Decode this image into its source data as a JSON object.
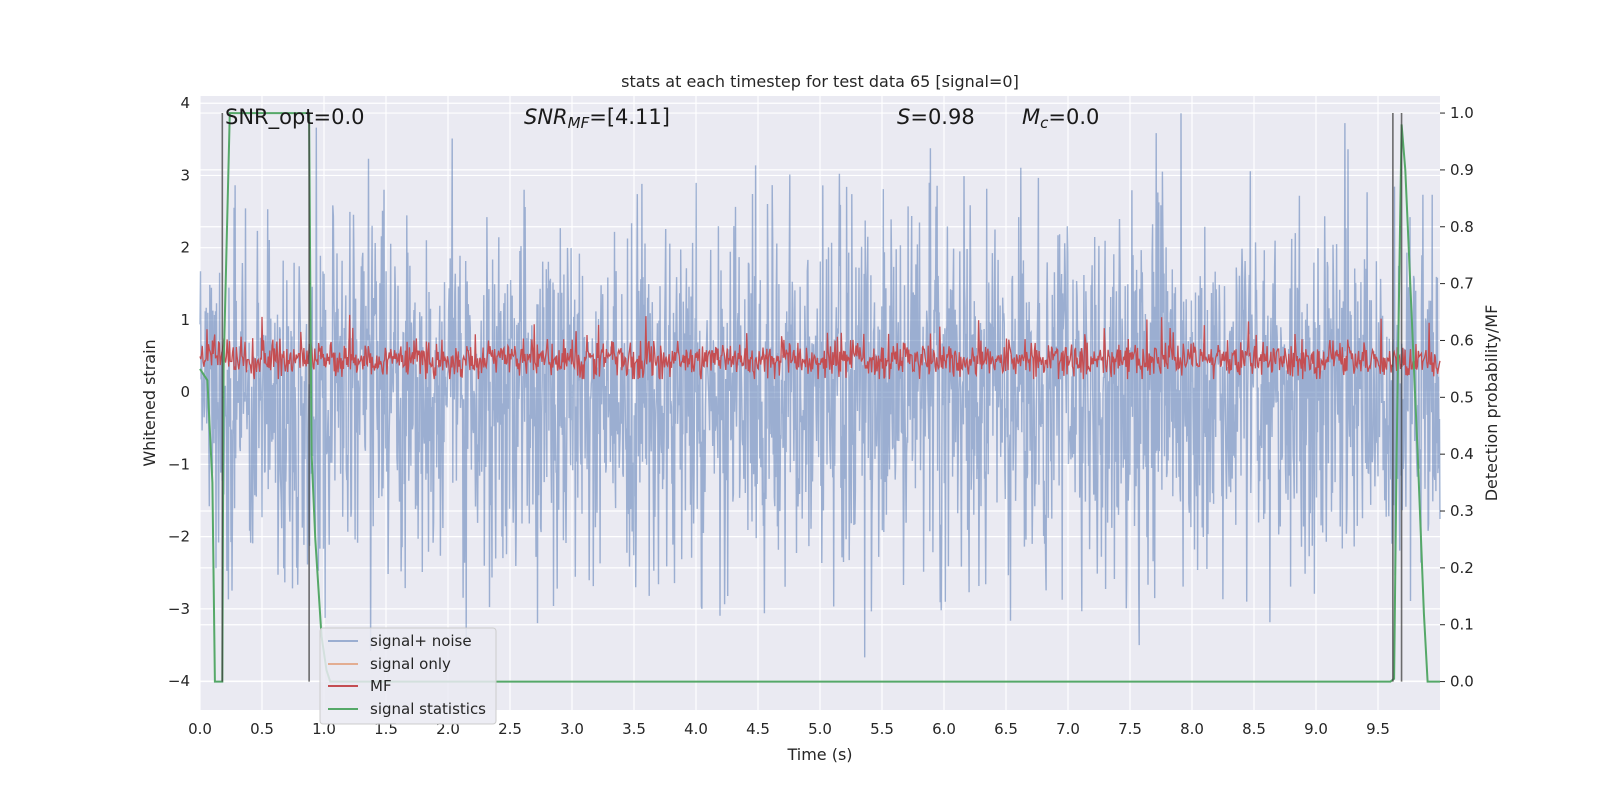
{
  "chart_data": {
    "type": "line",
    "title": "stats at each timestep for test data 65 [signal=0]",
    "xlabel": "Time (s)",
    "ylabel": "Whitened strain",
    "ylabel_right": "Detection probability/MF",
    "xlim": [
      0.0,
      10.0
    ],
    "ylim": [
      -4.4,
      4.1
    ],
    "ylim_right": [
      -0.05,
      1.03
    ],
    "xticks": [
      "0.0",
      "0.5",
      "1.0",
      "1.5",
      "2.0",
      "2.5",
      "3.0",
      "3.5",
      "4.0",
      "4.5",
      "5.0",
      "5.5",
      "6.0",
      "6.5",
      "7.0",
      "7.5",
      "8.0",
      "8.5",
      "9.0",
      "9.5"
    ],
    "xtick_values": [
      0.0,
      0.5,
      1.0,
      1.5,
      2.0,
      2.5,
      3.0,
      3.5,
      4.0,
      4.5,
      5.0,
      5.5,
      6.0,
      6.5,
      7.0,
      7.5,
      8.0,
      8.5,
      9.0,
      9.5
    ],
    "yticks": [
      "−4",
      "−3",
      "−2",
      "−1",
      "0",
      "1",
      "2",
      "3",
      "4"
    ],
    "ytick_values": [
      -4,
      -3,
      -2,
      -1,
      0,
      1,
      2,
      3,
      4
    ],
    "yticks_right": [
      "0.0",
      "0.1",
      "0.2",
      "0.3",
      "0.4",
      "0.5",
      "0.6",
      "0.7",
      "0.8",
      "0.9",
      "1.0"
    ],
    "ytick_right_values": [
      0.0,
      0.1,
      0.2,
      0.3,
      0.4,
      0.5,
      0.6,
      0.7,
      0.8,
      0.9,
      1.0
    ],
    "grid": true,
    "annotations": {
      "snr_opt": "SNR_opt=0.0",
      "snr_mf_italic": "SNR",
      "snr_mf_sub": "MF",
      "snr_mf_value": "=[4.11]",
      "s_italic": "S",
      "s_value": "=0.98",
      "mc_italic": "M",
      "mc_sub": "c",
      "mc_value": "=0.0"
    },
    "legend": {
      "placement": "lower-left",
      "entries": [
        "signal+ noise",
        "signal only",
        "MF",
        "signal statistics"
      ]
    },
    "series": [
      {
        "name": "signal+ noise",
        "axis": "left",
        "color": "#4c72b0",
        "description_of_shape": "whitened noise approximately Gaussian, peaks near ±4",
        "typical_range": [
          -4.0,
          4.0
        ]
      },
      {
        "name": "signal only",
        "axis": "left",
        "color": "#dd8452",
        "values": []
      },
      {
        "name": "MF",
        "axis": "right",
        "color": "#c44e52",
        "typical_range": [
          0.53,
          0.64
        ]
      },
      {
        "name": "signal statistics",
        "axis": "right",
        "color": "#55a868",
        "x": [
          0.0,
          0.06,
          0.1,
          0.12,
          0.18,
          0.19,
          0.24,
          0.88,
          0.89,
          0.9,
          0.93,
          0.98,
          1.02,
          1.05,
          9.6,
          9.63,
          9.65,
          9.69,
          9.72,
          9.74,
          9.77,
          9.82,
          9.87,
          9.9,
          9.93,
          9.96,
          10.0
        ],
        "values": [
          0.55,
          0.53,
          0.35,
          0.0,
          0.0,
          0.55,
          1.0,
          1.0,
          0.67,
          0.4,
          0.25,
          0.08,
          0.02,
          0.0,
          0.0,
          0.005,
          0.4,
          0.98,
          0.9,
          0.8,
          0.65,
          0.4,
          0.12,
          0.0,
          0.0,
          0.0,
          0.0
        ]
      }
    ],
    "vertical_markers_x": [
      0.18,
      0.88,
      9.62,
      9.69
    ]
  },
  "colors": {
    "plot_background": "#eaeaf2",
    "grid": "#ffffff",
    "noise": "#4c72b0",
    "signal_only": "#dd8452",
    "mf": "#c44e52",
    "stats": "#55a868",
    "marker": "#404040"
  }
}
